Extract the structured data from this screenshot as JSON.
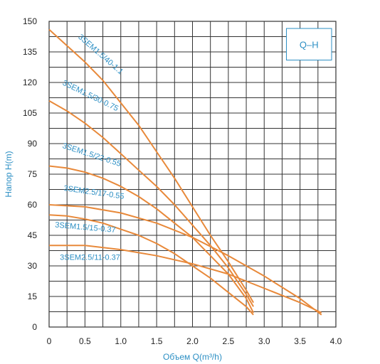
{
  "chart_data": {
    "type": "line",
    "title": "Q–H",
    "xlabel": "Объем Q(m³/h)",
    "ylabel": "Напор H(m)",
    "xlim": [
      0,
      4.0
    ],
    "ylim": [
      0,
      150
    ],
    "x_ticks": [
      0,
      0.5,
      1.0,
      1.5,
      2.0,
      2.5,
      3.0,
      3.5,
      4.0
    ],
    "x_tick_labels": [
      "0",
      "0.5",
      "1.0",
      "1.5",
      "2.0",
      "2.5",
      "3.0",
      "3.5",
      "4.0"
    ],
    "y_ticks": [
      0,
      15,
      30,
      45,
      60,
      75,
      90,
      105,
      120,
      135,
      150
    ],
    "y_tick_labels": [
      "0",
      "15",
      "30",
      "45",
      "60",
      "75",
      "90",
      "105",
      "120",
      "135",
      "150"
    ],
    "grid": true,
    "colors": {
      "curve": "#E8893A",
      "grid": "#333333",
      "accent": "#2C8FC4"
    },
    "series": [
      {
        "name": "3SEM1.5/40-1.1",
        "x": [
          0,
          0.25,
          0.5,
          0.75,
          1.0,
          1.25,
          1.5,
          1.75,
          2.0,
          2.25,
          2.5,
          2.75,
          2.85
        ],
        "y": [
          146,
          138,
          130,
          121,
          110,
          99,
          86,
          73,
          59,
          45,
          32,
          18,
          12
        ],
        "label_pos": [
          0.4,
          142
        ],
        "label_angle": 41
      },
      {
        "name": "3SEM1.5/30-0.75",
        "x": [
          0,
          0.25,
          0.5,
          0.75,
          1.0,
          1.25,
          1.5,
          1.75,
          2.0,
          2.25,
          2.5,
          2.75,
          2.85
        ],
        "y": [
          111,
          106,
          100,
          93,
          85,
          77,
          69,
          60,
          50,
          40,
          29,
          16,
          10
        ],
        "label_pos": [
          0.18,
          119
        ],
        "label_angle": 26
      },
      {
        "name": "3SEM1.5/22-0.55",
        "x": [
          0,
          0.25,
          0.5,
          0.75,
          1.0,
          1.25,
          1.5,
          1.75,
          2.0,
          2.25,
          2.5,
          2.75,
          2.85
        ],
        "y": [
          79,
          78,
          76,
          73,
          69,
          64,
          58,
          51,
          44,
          35,
          26,
          14,
          7
        ],
        "label_pos": [
          0.18,
          88
        ],
        "label_angle": 18
      },
      {
        "name": "3SEM2.5/17-0.55",
        "x": [
          0,
          0.5,
          1.0,
          1.5,
          2.0,
          2.5,
          3.0,
          3.5,
          3.8
        ],
        "y": [
          60,
          59,
          56,
          51,
          44,
          35,
          25,
          14,
          6
        ],
        "label_pos": [
          0.2,
          67
        ],
        "label_angle": 8
      },
      {
        "name": "3SEM1.5/15-0.37",
        "x": [
          0,
          0.25,
          0.5,
          0.75,
          1.0,
          1.25,
          1.5,
          1.75,
          2.0,
          2.25,
          2.5,
          2.75,
          2.85
        ],
        "y": [
          55,
          54.5,
          53,
          51,
          48,
          45,
          41,
          36,
          30,
          24,
          17,
          10,
          6
        ],
        "label_pos": [
          0.08,
          49
        ],
        "label_angle": 5
      },
      {
        "name": "3SEM2.5/11-0.37",
        "x": [
          0,
          0.5,
          1.0,
          1.5,
          2.0,
          2.5,
          3.0,
          3.5,
          3.8
        ],
        "y": [
          40,
          40,
          38,
          35,
          31,
          26,
          19,
          12,
          7
        ],
        "label_pos": [
          0.15,
          33
        ],
        "label_angle": 0
      }
    ]
  }
}
